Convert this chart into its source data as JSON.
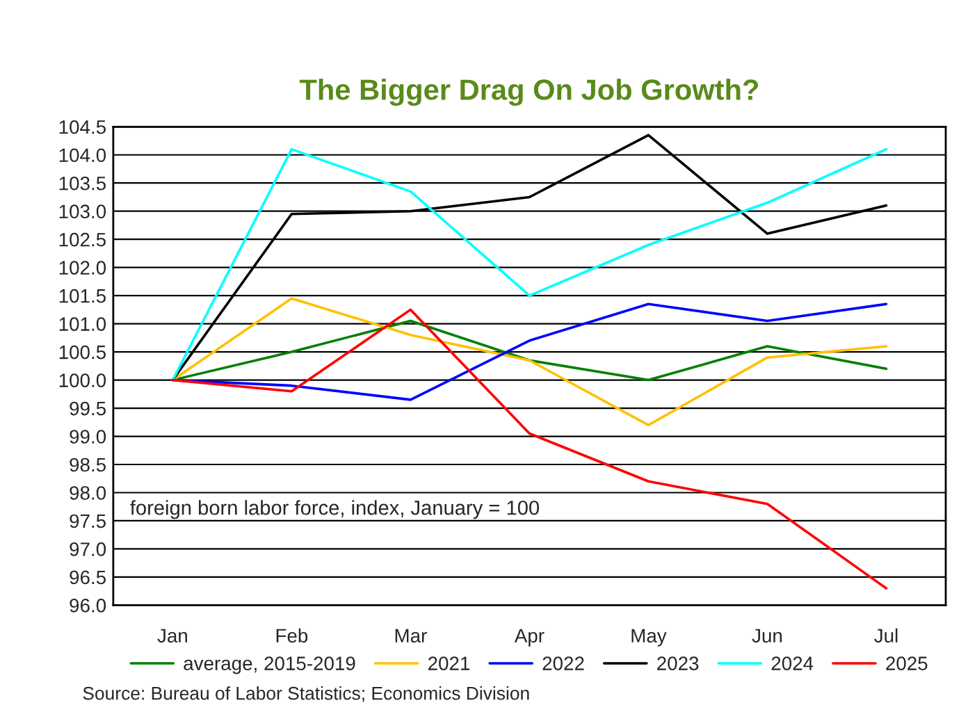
{
  "chart_data": {
    "type": "line",
    "title": "The Bigger Drag On Job Growth?",
    "categories": [
      "Jan",
      "Feb",
      "Mar",
      "Apr",
      "May",
      "Jun",
      "Jul"
    ],
    "series": [
      {
        "name": "average, 2015-2019",
        "color": "#008000",
        "values": [
          100.0,
          100.5,
          101.05,
          100.35,
          100.0,
          100.6,
          100.2
        ]
      },
      {
        "name": "2021",
        "color": "#ffc000",
        "values": [
          100.0,
          101.45,
          100.8,
          100.35,
          99.2,
          100.4,
          100.6
        ]
      },
      {
        "name": "2022",
        "color": "#0000ff",
        "values": [
          100.0,
          99.9,
          99.65,
          100.7,
          101.35,
          101.05,
          101.35
        ]
      },
      {
        "name": "2023",
        "color": "#000000",
        "values": [
          100.0,
          102.95,
          103.0,
          103.25,
          104.35,
          102.6,
          103.1
        ]
      },
      {
        "name": "2024",
        "color": "#00ffff",
        "values": [
          100.0,
          104.1,
          103.35,
          101.5,
          102.4,
          103.15,
          104.1
        ]
      },
      {
        "name": "2025",
        "color": "#ff0000",
        "values": [
          100.0,
          99.8,
          101.25,
          99.05,
          98.2,
          97.8,
          96.3
        ]
      }
    ],
    "ylim": [
      96.0,
      104.5
    ],
    "yticks": [
      {
        "value": 96.0,
        "label": "96.0"
      },
      {
        "value": 96.5,
        "label": "96.5"
      },
      {
        "value": 97.0,
        "label": "97.0"
      },
      {
        "value": 97.5,
        "label": "97.5"
      },
      {
        "value": 98.0,
        "label": "98.0"
      },
      {
        "value": 98.5,
        "label": "98.5"
      },
      {
        "value": 99.0,
        "label": "99.0"
      },
      {
        "value": 99.5,
        "label": "99.5"
      },
      {
        "value": 100.0,
        "label": "100.0"
      },
      {
        "value": 100.5,
        "label": "100.5"
      },
      {
        "value": 101.0,
        "label": "101.0"
      },
      {
        "value": 101.5,
        "label": "101.5"
      },
      {
        "value": 102.0,
        "label": "102.0"
      },
      {
        "value": 102.5,
        "label": "102.5"
      },
      {
        "value": 103.0,
        "label": "103.0"
      },
      {
        "value": 103.5,
        "label": "103.5"
      },
      {
        "value": 104.0,
        "label": "104.0"
      },
      {
        "value": 104.5,
        "label": "104.5"
      }
    ],
    "grid": "y",
    "legend": "bottom",
    "marker": "none",
    "line_style": "solid",
    "annotations": [
      "foreign born labor force, index, January = 100",
      "Source: Bureau of Labor Statistics; Economics Division"
    ]
  }
}
